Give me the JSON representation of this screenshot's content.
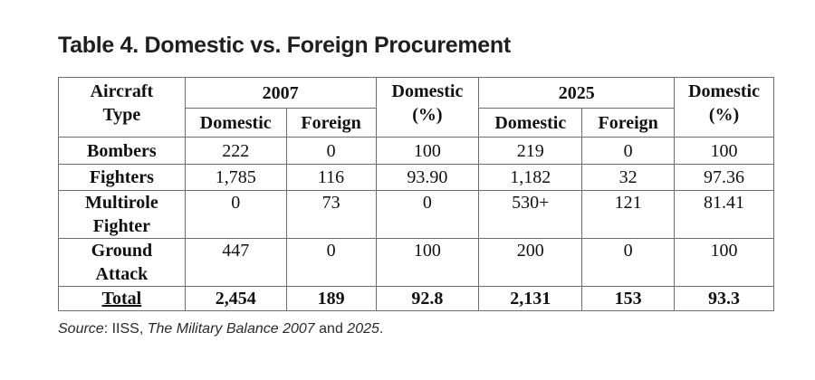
{
  "title": "Table 4. Domestic vs. Foreign Procurement",
  "table": {
    "header": {
      "aircraft_type_line1": "Aircraft",
      "aircraft_type_line2": "Type",
      "year_2007": "2007",
      "year_2025": "2025",
      "domestic_pct_line1": "Domestic",
      "domestic_pct_line2": "(%)",
      "domestic": "Domestic",
      "foreign": "Foreign"
    },
    "rows": [
      {
        "type_line1": "Bombers",
        "type_line2": "",
        "d2007": "222",
        "f2007": "0",
        "p2007": "100",
        "d2025": "219",
        "f2025": "0",
        "p2025": "100"
      },
      {
        "type_line1": "Fighters",
        "type_line2": "",
        "d2007": "1,785",
        "f2007": "116",
        "p2007": "93.90",
        "d2025": "1,182",
        "f2025": "32",
        "p2025": "97.36"
      },
      {
        "type_line1": "Multirole",
        "type_line2": "Fighter",
        "d2007": "0",
        "f2007": "73",
        "p2007": "0",
        "d2025": "530+",
        "f2025": "121",
        "p2025": "81.41"
      },
      {
        "type_line1": "Ground",
        "type_line2": "Attack",
        "d2007": "447",
        "f2007": "0",
        "p2007": "100",
        "d2025": "200",
        "f2025": "0",
        "p2025": "100"
      }
    ],
    "total": {
      "label": "Total",
      "d2007": "2,454",
      "f2007": "189",
      "p2007": "92.8",
      "d2025": "2,131",
      "f2025": "153",
      "p2025": "93.3"
    }
  },
  "source": {
    "prefix": "Source",
    "colon": ": IISS, ",
    "publication": "The Military Balance 2007",
    "and": " and ",
    "year": "2025",
    "end": "."
  }
}
